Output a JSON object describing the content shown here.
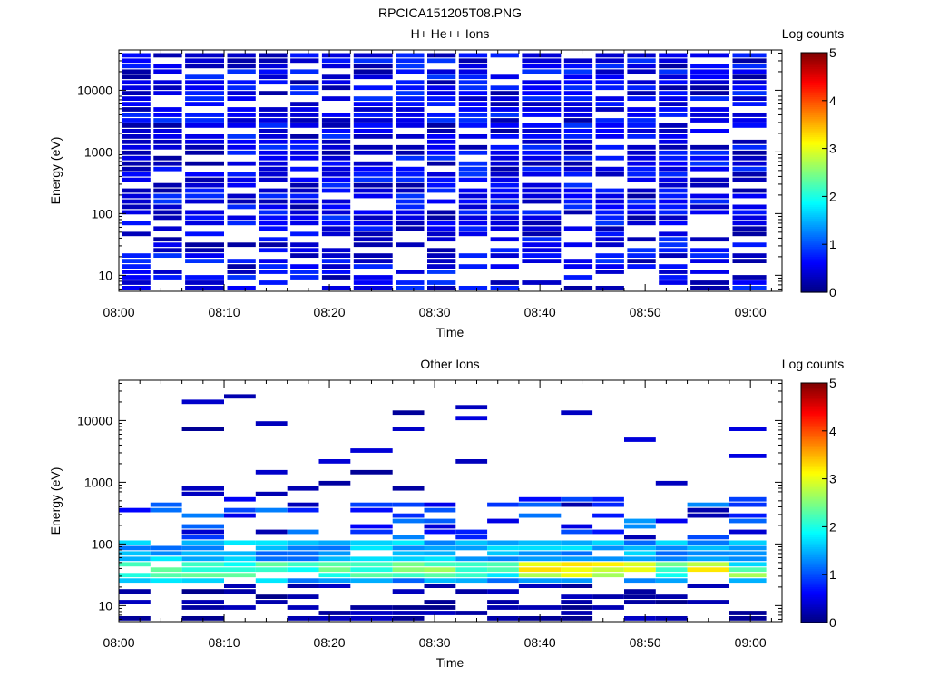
{
  "figure": {
    "title": "RPCICA151205T08.PNG"
  },
  "chart_data": [
    {
      "type": "heatmap",
      "title": "H+ He++ Ions",
      "xlabel": "Time",
      "ylabel": "Energy (eV)",
      "y_scale": "log",
      "ylim": [
        5.5,
        45000
      ],
      "x_range": [
        "08:00",
        "09:03"
      ],
      "x_ticks": [
        "08:00",
        "08:10",
        "08:20",
        "08:30",
        "08:40",
        "08:50",
        "09:00"
      ],
      "y_ticks": [
        "10",
        "100",
        "1000",
        "10000"
      ],
      "colorbar": {
        "label": "Log counts",
        "range": [
          0,
          5
        ],
        "ticks": [
          "0",
          "1",
          "2",
          "3",
          "4",
          "5"
        ]
      },
      "time_bins": [
        "08:00",
        "08:03",
        "08:06",
        "08:10",
        "08:13",
        "08:16",
        "08:19",
        "08:22",
        "08:26",
        "08:29",
        "08:32",
        "08:35",
        "08:38",
        "08:42",
        "08:45",
        "08:48",
        "08:51",
        "08:54",
        "08:58"
      ],
      "energy_bins": 44,
      "description": "Sparse low-level counts (log counts mostly 0.2-0.8) spanning ~8 eV to ~40 keV in all time bins"
    },
    {
      "type": "heatmap",
      "title": "Other Ions",
      "xlabel": "Time",
      "ylabel": "Energy (eV)",
      "y_scale": "log",
      "ylim": [
        5.5,
        45000
      ],
      "x_range": [
        "08:00",
        "09:03"
      ],
      "x_ticks": [
        "08:00",
        "08:10",
        "08:20",
        "08:30",
        "08:40",
        "08:50",
        "09:00"
      ],
      "y_ticks": [
        "10",
        "100",
        "1000",
        "10000"
      ],
      "colorbar": {
        "label": "Log counts",
        "range": [
          0,
          5
        ],
        "ticks": [
          "0",
          "1",
          "2",
          "3",
          "4",
          "5"
        ]
      },
      "time_bins": [
        "08:00",
        "08:03",
        "08:06",
        "08:10",
        "08:13",
        "08:16",
        "08:19",
        "08:22",
        "08:26",
        "08:29",
        "08:32",
        "08:35",
        "08:38",
        "08:42",
        "08:45",
        "08:48",
        "08:51",
        "08:54",
        "08:58"
      ],
      "energy_bins": 44,
      "description": "Dense band at ~25-100 eV with log counts up to ~3.3 around 08:40-08:58; sparse counts up to ~40 keV",
      "peaks": [
        {
          "time": "08:40",
          "energy": 35,
          "log_counts": 3.2
        },
        {
          "time": "08:48",
          "energy": 35,
          "log_counts": 3.3
        },
        {
          "time": "08:54",
          "energy": 35,
          "log_counts": 3.1
        },
        {
          "time": "08:06",
          "energy": 45,
          "log_counts": 2.6
        }
      ]
    }
  ]
}
